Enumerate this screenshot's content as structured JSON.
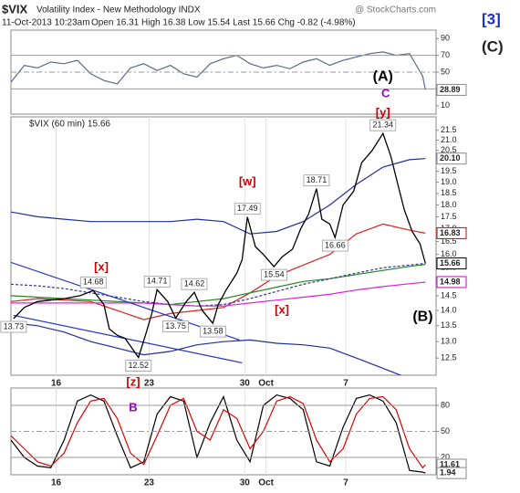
{
  "header": {
    "symbol": "$VIX",
    "name": "Volatility Index - New Methodology INDX",
    "source": "@ StockCharts.com",
    "date": "11-Oct-2013 10:23am",
    "quote": "Open 16.31 High 16.38 Low 15.54 Last 15.66 Chg -0.82 (-4.98%)",
    "side_labels": [
      "[3]",
      "(C)"
    ]
  },
  "chart_data": [
    {
      "type": "line",
      "xlim": [
        0,
        160
      ],
      "ylim": [
        0,
        100
      ],
      "yticks": [
        10,
        30,
        50,
        70,
        90
      ],
      "levels": [
        70,
        30
      ],
      "dashed_level": 50,
      "x": [
        0,
        5,
        10,
        15,
        20,
        25,
        30,
        35,
        40,
        45,
        50,
        55,
        60,
        65,
        70,
        75,
        80,
        85,
        90,
        95,
        100,
        105,
        110,
        115,
        120,
        125,
        130,
        135,
        140,
        145,
        150,
        155,
        156
      ],
      "series": [
        {
          "color": "#5a6b8a",
          "values": [
            38,
            58,
            55,
            62,
            60,
            64,
            48,
            40,
            36,
            55,
            60,
            52,
            58,
            48,
            44,
            60,
            66,
            70,
            60,
            55,
            58,
            54,
            62,
            66,
            58,
            64,
            68,
            72,
            74,
            70,
            72,
            45,
            28.89
          ]
        }
      ],
      "last_labels": [
        {
          "value": 28.89,
          "color": "#888888"
        }
      ],
      "annotations": [
        {
          "text": "(A)",
          "x": 140,
          "y": 44,
          "color": "#000000"
        },
        {
          "text": "C",
          "x": 141,
          "y": 24,
          "color": "#9900cc"
        }
      ]
    },
    {
      "type": "line",
      "log": true,
      "xlim": [
        0,
        160
      ],
      "ylim": [
        12.0,
        22.2
      ],
      "grid_x": true,
      "legend": "$VIX (60 min) 15.66",
      "yticks": [
        12.5,
        {
          "value": 13,
          "label": "13.0"
        },
        13.5,
        {
          "value": 14,
          "label": "14.0"
        },
        14.5,
        {
          "value": 15,
          "label": "15.0"
        },
        15.5,
        {
          "value": 16,
          "label": "16.0"
        },
        16.5,
        {
          "value": 17,
          "label": "17.0"
        },
        17.5,
        {
          "value": 18,
          "label": "18.0"
        },
        18.5,
        {
          "value": 19,
          "label": "19.0"
        },
        19.5,
        {
          "value": 20,
          "label": "20.0"
        },
        20.5,
        {
          "value": 21,
          "label": "21.0"
        },
        21.5
      ],
      "xticks": [
        {
          "value": 17,
          "label": "16"
        },
        {
          "value": 52,
          "label": "23"
        },
        {
          "value": 88,
          "label": "30"
        },
        {
          "value": 96,
          "label": "Oct"
        },
        {
          "value": 126,
          "label": "7"
        }
      ],
      "price": {
        "color": "#000000",
        "x": [
          1,
          5,
          10,
          15,
          20,
          26,
          31,
          35,
          37,
          40,
          43,
          48,
          51,
          53,
          55,
          59,
          62,
          66,
          69,
          72,
          76,
          78,
          81,
          85,
          87,
          89,
          92,
          95,
          99,
          102,
          106,
          109,
          112,
          115,
          117,
          120,
          122,
          125,
          129,
          132,
          136,
          140,
          143,
          145,
          148,
          151,
          154,
          156
        ],
        "values": [
          13.73,
          14.1,
          14.3,
          14.35,
          14.4,
          14.5,
          14.68,
          14.2,
          13.4,
          13.2,
          13.1,
          12.52,
          13.3,
          13.9,
          14.71,
          14.3,
          13.75,
          14.3,
          14.62,
          14.0,
          13.58,
          14.2,
          14.7,
          15.3,
          15.8,
          17.49,
          16.3,
          16.0,
          15.54,
          15.9,
          16.2,
          17.0,
          17.6,
          18.71,
          17.4,
          17.2,
          16.66,
          18.0,
          18.6,
          19.9,
          20.5,
          21.34,
          20.2,
          19.2,
          17.8,
          16.9,
          16.4,
          15.66
        ]
      },
      "x": [
        0,
        10,
        20,
        30,
        40,
        50,
        60,
        70,
        80,
        90,
        100,
        110,
        120,
        130,
        140,
        150,
        156
      ],
      "series": [
        {
          "color": "#1f2f9f",
          "values": [
            17.7,
            17.5,
            17.4,
            17.3,
            17.3,
            17.3,
            17.3,
            17.4,
            17.3,
            16.8,
            16.9,
            17.3,
            18.0,
            18.9,
            19.7,
            20.05,
            20.1
          ]
        },
        {
          "color": "#1f2f9f",
          "values": [
            13.6,
            13.5,
            13.3,
            13.0,
            12.8,
            12.6,
            12.7,
            12.9,
            13.0,
            13.05,
            12.95,
            12.9,
            12.8,
            12.5,
            12.2,
            11.9,
            11.8
          ]
        },
        {
          "color": "#dd2222",
          "values": [
            14.3,
            14.4,
            14.35,
            14.3,
            14.0,
            13.7,
            13.9,
            14.0,
            14.1,
            14.6,
            15.2,
            15.6,
            16.0,
            16.8,
            17.2,
            16.95,
            16.83
          ]
        },
        {
          "color": "#228822",
          "values": [
            14.5,
            14.45,
            14.4,
            14.35,
            14.3,
            14.25,
            14.2,
            14.3,
            14.4,
            14.6,
            14.8,
            15.0,
            15.1,
            15.25,
            15.4,
            15.55,
            15.62
          ]
        },
        {
          "color": "#333399",
          "dashed": true,
          "values": [
            14.9,
            14.85,
            14.75,
            14.6,
            14.45,
            14.3,
            14.2,
            14.15,
            14.2,
            14.4,
            14.65,
            14.9,
            15.1,
            15.3,
            15.5,
            15.6,
            15.66
          ]
        },
        {
          "color": "#dd22dd",
          "values": [
            14.25,
            14.25,
            14.25,
            14.25,
            14.25,
            14.25,
            14.2,
            14.15,
            14.15,
            14.25,
            14.35,
            14.45,
            14.55,
            14.7,
            14.82,
            14.92,
            14.98
          ]
        }
      ],
      "trendlines": [
        {
          "color": "#2233cc",
          "x": [
            0,
            86
          ],
          "values": [
            15.7,
            13.05
          ]
        },
        {
          "color": "#2233cc",
          "x": [
            1,
            87
          ],
          "values": [
            13.84,
            12.36
          ]
        }
      ],
      "point_labels": [
        {
          "value": 13.73,
          "x": 1,
          "side": "below"
        },
        {
          "value": 14.68,
          "x": 31,
          "side": "above"
        },
        {
          "value": 12.52,
          "x": 48,
          "side": "below"
        },
        {
          "value": 14.71,
          "x": 55,
          "side": "above"
        },
        {
          "value": 13.75,
          "x": 62,
          "side": "below"
        },
        {
          "value": 14.62,
          "x": 69,
          "side": "above"
        },
        {
          "value": 13.58,
          "x": 76,
          "side": "below"
        },
        {
          "value": 17.49,
          "x": 89,
          "side": "above"
        },
        {
          "value": 15.54,
          "x": 99,
          "side": "below"
        },
        {
          "value": 18.71,
          "x": 115,
          "side": "above"
        },
        {
          "value": 16.66,
          "x": 122,
          "side": "below"
        },
        {
          "value": 21.34,
          "x": 140,
          "side": "above"
        }
      ],
      "last_labels": [
        {
          "value": 20.1,
          "label": "20.10",
          "color": "#888888"
        },
        {
          "value": 16.83,
          "color": "#cc0000"
        },
        {
          "value": 15.66,
          "color": "#000000"
        },
        {
          "value": 14.98,
          "color": "#cc00cc"
        }
      ],
      "annotations": [
        {
          "text": "[y]",
          "x": 140,
          "y": 22.4,
          "color": "#cc0000"
        },
        {
          "text": "[w]",
          "x": 89,
          "y": 19.0,
          "color": "#cc0000"
        },
        {
          "text": "[x]",
          "x": 34,
          "y": 15.51,
          "color": "#cc0000"
        },
        {
          "text": "[x]",
          "x": 102,
          "y": 14.0,
          "color": "#cc0000"
        },
        {
          "text": "(B)",
          "x": 155,
          "y": 13.78,
          "color": "#000000"
        }
      ]
    },
    {
      "type": "line",
      "xlim": [
        0,
        160
      ],
      "ylim": [
        0,
        100
      ],
      "yticks": [
        20,
        50,
        80
      ],
      "levels": [
        80,
        20
      ],
      "dashed_level": 50,
      "grid_x": true,
      "xticks": [
        {
          "value": 17,
          "label": "16"
        },
        {
          "value": 52,
          "label": "23"
        },
        {
          "value": 88,
          "label": "30"
        },
        {
          "value": 96,
          "label": "Oct"
        },
        {
          "value": 126,
          "label": "7"
        }
      ],
      "x": [
        0,
        5,
        10,
        15,
        20,
        25,
        30,
        35,
        40,
        45,
        50,
        55,
        60,
        65,
        70,
        75,
        80,
        85,
        90,
        95,
        100,
        105,
        110,
        115,
        120,
        125,
        130,
        135,
        140,
        145,
        150,
        155,
        156
      ],
      "series": [
        {
          "color": "#000000",
          "values": [
            40,
            20,
            10,
            8,
            40,
            85,
            92,
            85,
            45,
            8,
            15,
            70,
            90,
            85,
            20,
            60,
            90,
            40,
            15,
            80,
            92,
            88,
            75,
            15,
            10,
            55,
            88,
            92,
            85,
            60,
            5,
            3,
            1.94
          ]
        },
        {
          "color": "#dd0000",
          "values": [
            45,
            30,
            15,
            10,
            25,
            60,
            85,
            88,
            65,
            25,
            12,
            45,
            80,
            88,
            50,
            40,
            75,
            65,
            30,
            50,
            85,
            90,
            82,
            40,
            15,
            30,
            70,
            88,
            90,
            75,
            30,
            8,
            11.61
          ]
        }
      ],
      "last_labels": [
        {
          "value": 11.61,
          "color": "#888888"
        },
        {
          "value": 1.94,
          "color": "#888888"
        }
      ],
      "annotations": [
        {
          "text": "[z]",
          "x": 46,
          "y": 106,
          "color": "#cc0000"
        },
        {
          "text": "B",
          "x": 46,
          "y": 77,
          "color": "#9900cc"
        }
      ]
    }
  ]
}
